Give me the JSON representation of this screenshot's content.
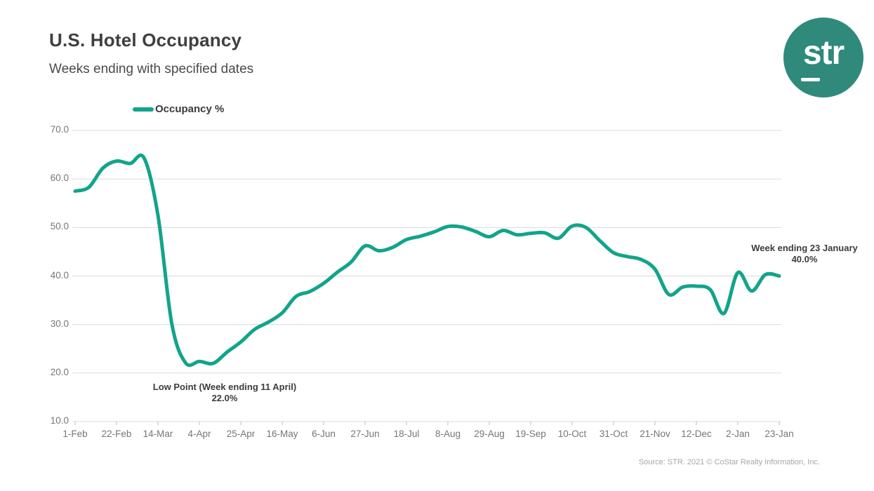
{
  "header": {
    "title": "U.S. Hotel Occupancy",
    "subtitle": "Weeks ending with specified dates"
  },
  "logo": {
    "text": "str"
  },
  "legend": {
    "label": "Occupancy %"
  },
  "annotations": {
    "low_point": {
      "line1": "Low Point (Week ending 11 April)",
      "line2": "22.0%"
    },
    "latest": {
      "line1": "Week ending 23 January",
      "line2": "40.0%"
    }
  },
  "source": "Source: STR. 2021 © CoStar Realty Information, Inc.",
  "colors": {
    "line": "#12A48B",
    "logo_bg": "#2F8A7B",
    "gridline": "#DBDBDB",
    "tick": "#BDBDBD",
    "axis_text": "#767676",
    "title_text": "#3F3F3F",
    "annotation_text": "#3C3C3C",
    "source_text": "#A6A6A6"
  },
  "chart_data": {
    "type": "line",
    "title": "U.S. Hotel Occupancy",
    "subtitle": "Weeks ending with specified dates",
    "xlabel": "",
    "ylabel": "Occupancy %",
    "ylim": [
      10.0,
      70.0
    ],
    "yticks": [
      10,
      20,
      30,
      40,
      50,
      60,
      70
    ],
    "ytick_labels": [
      "10.0",
      "20.0",
      "30.0",
      "40.0",
      "50.0",
      "60.0",
      "70.0"
    ],
    "grid": "horizontal",
    "legend_position": "top-left",
    "x_tick_every": 3,
    "x_tick_labels": [
      "1-Feb",
      "22-Feb",
      "14-Mar",
      "4-Apr",
      "25-Apr",
      "16-May",
      "6-Jun",
      "27-Jun",
      "18-Jul",
      "8-Aug",
      "29-Aug",
      "19-Sep",
      "10-Oct",
      "31-Oct",
      "21-Nov",
      "12-Dec",
      "2-Jan",
      "23-Jan"
    ],
    "x": [
      "1-Feb",
      "8-Feb",
      "15-Feb",
      "22-Feb",
      "29-Feb",
      "7-Mar",
      "14-Mar",
      "21-Mar",
      "28-Mar",
      "4-Apr",
      "11-Apr",
      "18-Apr",
      "25-Apr",
      "2-May",
      "9-May",
      "16-May",
      "23-May",
      "30-May",
      "6-Jun",
      "13-Jun",
      "20-Jun",
      "27-Jun",
      "4-Jul",
      "11-Jul",
      "18-Jul",
      "25-Jul",
      "1-Aug",
      "8-Aug",
      "15-Aug",
      "22-Aug",
      "29-Aug",
      "5-Sep",
      "12-Sep",
      "19-Sep",
      "26-Sep",
      "3-Oct",
      "10-Oct",
      "17-Oct",
      "24-Oct",
      "31-Oct",
      "7-Nov",
      "14-Nov",
      "21-Nov",
      "28-Nov",
      "5-Dec",
      "12-Dec",
      "19-Dec",
      "26-Dec",
      "2-Jan",
      "9-Jan",
      "16-Jan",
      "23-Jan"
    ],
    "series": [
      {
        "name": "Occupancy %",
        "values": [
          57.5,
          58.3,
          62.2,
          63.7,
          63.2,
          64.3,
          52.5,
          30.2,
          22.1,
          22.4,
          22.0,
          24.3,
          26.4,
          29.0,
          30.5,
          32.4,
          35.8,
          36.8,
          38.5,
          40.8,
          42.9,
          46.2,
          45.2,
          45.9,
          47.5,
          48.2,
          49.1,
          50.2,
          50.1,
          49.2,
          48.1,
          49.4,
          48.5,
          48.8,
          48.9,
          47.8,
          50.3,
          50.0,
          47.3,
          44.8,
          44.0,
          43.4,
          41.4,
          36.2,
          37.7,
          37.9,
          37.2,
          32.3,
          40.7,
          36.9,
          40.3,
          40.0
        ]
      }
    ],
    "annotations": [
      {
        "x": "11-Apr",
        "y": 22.0,
        "text": "Low Point (Week ending 11 April) 22.0%"
      },
      {
        "x": "23-Jan",
        "y": 40.0,
        "text": "Week ending 23 January 40.0%"
      }
    ]
  }
}
